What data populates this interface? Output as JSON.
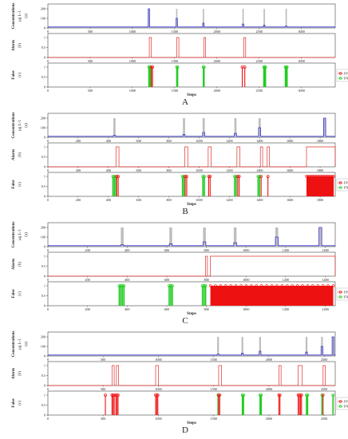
{
  "figure": {
    "panels": [
      {
        "letter": "A",
        "xmax": 3400,
        "ticks": [
          0,
          500,
          1000,
          1500,
          2000,
          2500,
          3000
        ]
      },
      {
        "letter": "B",
        "xmax": 1900,
        "ticks": [
          0,
          200,
          400,
          600,
          800,
          1000,
          1200,
          1400,
          1600,
          1800
        ]
      },
      {
        "letter": "C",
        "xmax": 1450,
        "ticks": [
          0,
          200,
          400,
          600,
          800,
          1000,
          1200,
          1400
        ]
      },
      {
        "letter": "D",
        "xmax": 2600,
        "ticks": [
          0,
          500,
          1000,
          1500,
          2000,
          2500
        ]
      }
    ],
    "row_labels": {
      "conc": [
        "Concentrations",
        "μg L-1",
        "(a)"
      ],
      "alarm": [
        "Alarm",
        "(b)"
      ],
      "false": [
        "False",
        "(c)"
      ]
    },
    "xlabel": "Steps",
    "legend": {
      "fp": "FP",
      "fn": "FN"
    },
    "colors": {
      "conc": "#3333cc",
      "grey": "#bdbdbd",
      "alarm": "#e0302a",
      "fp": "#ee1111",
      "fn": "#22cc22"
    }
  },
  "chart_data": [
    {
      "type": "line",
      "panel": "A",
      "xlabel": "Steps",
      "xlim": [
        0,
        3400
      ],
      "concentration": {
        "ylim": [
          0,
          250
        ],
        "yticks": [
          0,
          100,
          200
        ],
        "baseline": 10,
        "events": [
          {
            "x": 1195,
            "w": 16,
            "peak": 200,
            "grey": 200
          },
          {
            "x": 1525,
            "w": 16,
            "peak": 100,
            "grey": 200
          },
          {
            "x": 1840,
            "w": 16,
            "peak": 50,
            "grey": 200
          },
          {
            "x": 2310,
            "w": 16,
            "peak": 40,
            "grey": 200
          },
          {
            "x": 2560,
            "w": 16,
            "peak": 30,
            "grey": 200
          },
          {
            "x": 2820,
            "w": 16,
            "peak": 20,
            "grey": 200
          }
        ]
      },
      "alarm": {
        "ylim": [
          0,
          1.2
        ],
        "yticks": [
          0,
          0.5,
          1
        ],
        "on": [
          [
            1200,
            1225
          ],
          [
            1525,
            1550
          ],
          [
            1845,
            1865
          ],
          [
            2320,
            2340
          ]
        ]
      },
      "false": {
        "ylim": [
          0,
          1.2
        ],
        "yticks": [
          0,
          0.5,
          1
        ],
        "fp": [
          1225,
          1238,
          2300,
          2330
        ],
        "fn": [
          1195,
          1205,
          1215,
          1525,
          1535,
          1840,
          1848,
          2555,
          2565,
          2575,
          2810,
          2820,
          2830
        ]
      }
    },
    {
      "type": "line",
      "panel": "B",
      "xlabel": "Steps",
      "xlim": [
        0,
        1900
      ],
      "concentration": {
        "ylim": [
          0,
          250
        ],
        "yticks": [
          0,
          100,
          200
        ],
        "baseline": 10,
        "events": [
          {
            "x": 440,
            "w": 14,
            "peak": 20,
            "grey": 200
          },
          {
            "x": 900,
            "w": 14,
            "peak": 30,
            "grey": 200
          },
          {
            "x": 1030,
            "w": 14,
            "peak": 50,
            "grey": 200
          },
          {
            "x": 1240,
            "w": 14,
            "peak": 40,
            "grey": 200
          },
          {
            "x": 1400,
            "w": 14,
            "peak": 100,
            "grey": 200
          },
          {
            "x": 1830,
            "w": 14,
            "peak": 200,
            "grey": 200
          }
        ]
      },
      "alarm": {
        "ylim": [
          0,
          1.2
        ],
        "yticks": [
          0,
          0.5,
          1
        ],
        "on": [
          [
            450,
            470
          ],
          [
            905,
            925
          ],
          [
            1060,
            1080
          ],
          [
            1250,
            1270
          ],
          [
            1405,
            1420
          ],
          [
            1450,
            1465
          ],
          [
            1710,
            1900
          ]
        ]
      },
      "false": {
        "ylim": [
          0,
          1.2
        ],
        "yticks": [
          0,
          0.5,
          1
        ],
        "fp": [
          455,
          465,
          908,
          918,
          1063,
          1073,
          1255,
          1265,
          1410,
          1455
        ],
        "fn": [
          430,
          440,
          450,
          890,
          900,
          1025,
          1035,
          1235,
          1245,
          1390,
          1400
        ],
        "fp_band": [
          1710,
          1890
        ]
      }
    },
    {
      "type": "line",
      "panel": "C",
      "xlabel": "Steps",
      "xlim": [
        0,
        1450
      ],
      "concentration": {
        "ylim": [
          0,
          250
        ],
        "yticks": [
          0,
          100,
          200
        ],
        "baseline": 10,
        "events": [
          {
            "x": 375,
            "w": 14,
            "peak": 20,
            "grey": 200
          },
          {
            "x": 620,
            "w": 14,
            "peak": 30,
            "grey": 200
          },
          {
            "x": 790,
            "w": 14,
            "peak": 50,
            "grey": 200
          },
          {
            "x": 945,
            "w": 14,
            "peak": 40,
            "grey": 200
          },
          {
            "x": 1155,
            "w": 14,
            "peak": 100,
            "grey": 200
          },
          {
            "x": 1375,
            "w": 14,
            "peak": 200,
            "grey": 200
          }
        ]
      },
      "alarm": {
        "ylim": [
          0,
          1.2
        ],
        "yticks": [
          0,
          0.5,
          1
        ],
        "on": [
          [
            795,
            805
          ],
          [
            820,
            1450
          ]
        ]
      },
      "false": {
        "ylim": [
          0,
          1.2
        ],
        "yticks": [
          0,
          0.5,
          1
        ],
        "fp": [],
        "fn": [
          360,
          368,
          376,
          384,
          612,
          620,
          628,
          780,
          788,
          796
        ],
        "fp_band": [
          820,
          1440
        ]
      }
    },
    {
      "type": "line",
      "panel": "D",
      "xlabel": "Steps",
      "xlim": [
        0,
        2600
      ],
      "concentration": {
        "ylim": [
          0,
          250
        ],
        "yticks": [
          0,
          100,
          200
        ],
        "baseline": 10,
        "events": [
          {
            "x": 1540,
            "w": 16,
            "peak": 20,
            "grey": 200
          },
          {
            "x": 1760,
            "w": 16,
            "peak": 30,
            "grey": 200
          },
          {
            "x": 1920,
            "w": 16,
            "peak": 50,
            "grey": 200
          },
          {
            "x": 2340,
            "w": 16,
            "peak": 40,
            "grey": 200
          },
          {
            "x": 2480,
            "w": 16,
            "peak": 100,
            "grey": 200
          },
          {
            "x": 2580,
            "w": 16,
            "peak": 200,
            "grey": 200
          }
        ]
      },
      "alarm": {
        "ylim": [
          0,
          1.2
        ],
        "yticks": [
          0,
          0.5,
          1
        ],
        "on": [
          [
            580,
            600
          ],
          [
            620,
            640
          ],
          [
            975,
            1000
          ],
          [
            1545,
            1570
          ],
          [
            2090,
            2110
          ],
          [
            2265,
            2300
          ],
          [
            2490,
            2510
          ]
        ]
      },
      "false": {
        "ylim": [
          0,
          1.2
        ],
        "yticks": [
          0,
          0.5,
          1
        ],
        "fp": [
          520,
          580,
          590,
          600,
          615,
          625,
          635,
          975,
          985,
          995,
          1545,
          1555,
          2090,
          2100,
          2265,
          2275,
          2285,
          2295,
          2490
        ],
        "fn": [
          1540,
          1760,
          1770,
          1920,
          1930,
          2340,
          2350,
          2480,
          2580
        ]
      }
    }
  ]
}
